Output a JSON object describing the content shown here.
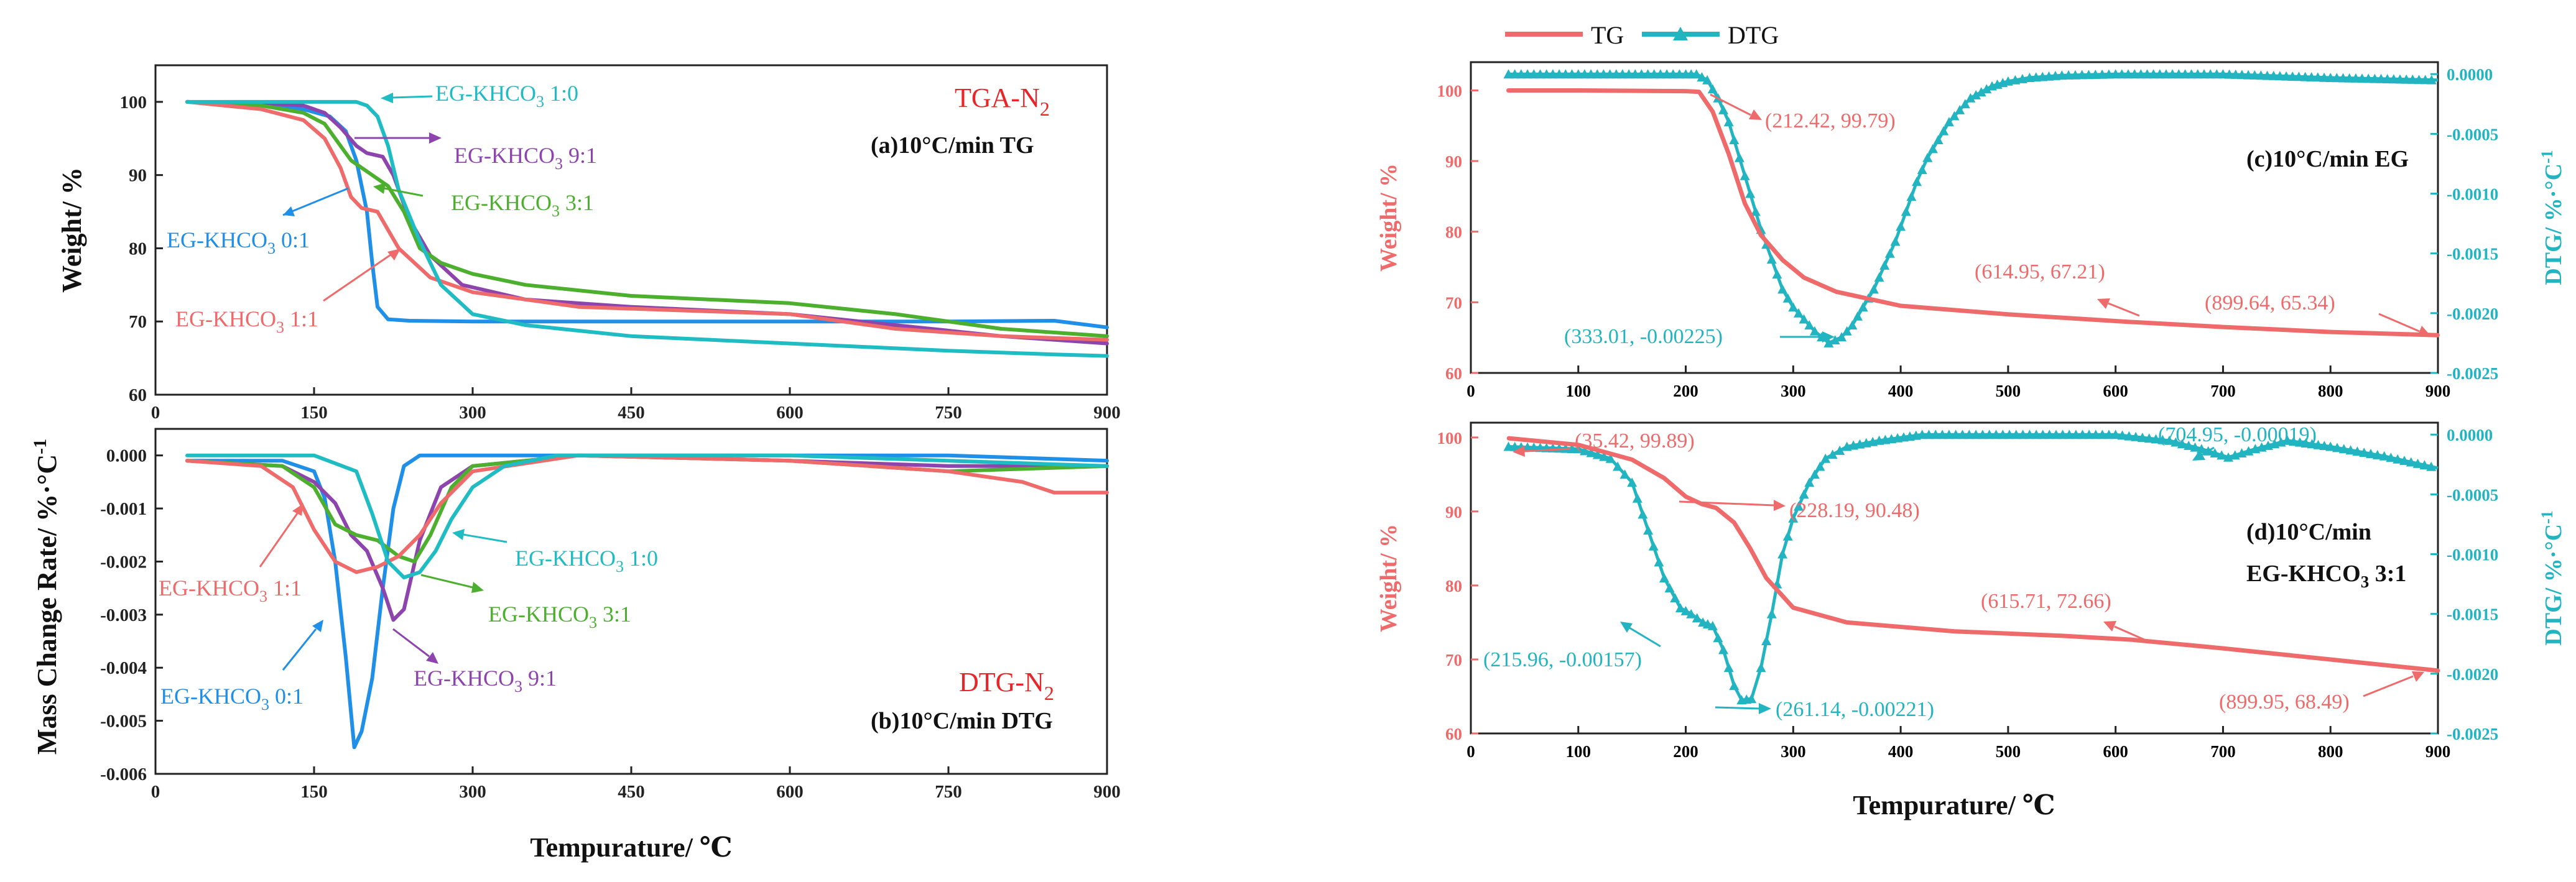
{
  "colors": {
    "c10": "#1f8fe8",
    "c91": "#8e44ad",
    "c31": "#4caf2e",
    "c11": "#ef6a6a",
    "c01": "#1fbcc3",
    "red": "#e8262a",
    "tg": "#ef6a6a",
    "dtg": "#22b5c1"
  },
  "chart_data": [
    {
      "id": "a",
      "type": "line",
      "title": "(a)10°C/min TG",
      "corner_label": "TGA-N2",
      "xlabel": "",
      "ylabel": "Weight/ %",
      "xlim": [
        0,
        900
      ],
      "ylim": [
        60,
        105
      ],
      "xticks": [
        0,
        150,
        300,
        450,
        600,
        750,
        900
      ],
      "yticks": [
        60,
        70,
        80,
        90,
        100
      ],
      "series": [
        {
          "name": "EG-KHCO3 0:1",
          "color_key": "c10",
          "x": [
            30,
            100,
            140,
            165,
            180,
            190,
            200,
            205,
            210,
            220,
            240,
            300,
            450,
            600,
            750,
            850,
            900
          ],
          "y": [
            100,
            99.5,
            99,
            98,
            96,
            92,
            85,
            78,
            72,
            70.3,
            70.1,
            70,
            70,
            70,
            70,
            70.1,
            69.2
          ]
        },
        {
          "name": "EG-KHCO3 9:1",
          "color_key": "c91",
          "x": [
            30,
            100,
            140,
            160,
            175,
            190,
            200,
            215,
            225,
            240,
            260,
            290,
            350,
            450,
            600,
            700,
            800,
            900
          ],
          "y": [
            100,
            99.8,
            99.5,
            98.5,
            96.5,
            94,
            93,
            92.5,
            90,
            84,
            79,
            75,
            73,
            72,
            71,
            69.5,
            68,
            67
          ]
        },
        {
          "name": "EG-KHCO3 3:1",
          "color_key": "c31",
          "x": [
            30,
            100,
            140,
            160,
            175,
            185,
            200,
            220,
            235,
            250,
            270,
            300,
            350,
            450,
            600,
            700,
            800,
            900
          ],
          "y": [
            100,
            99.5,
            98.5,
            97,
            94,
            92,
            90.5,
            88.5,
            85,
            80,
            78,
            76.5,
            75,
            73.5,
            72.5,
            71,
            69,
            68
          ]
        },
        {
          "name": "EG-KHCO3 1:1",
          "color_key": "c11",
          "x": [
            30,
            100,
            140,
            160,
            175,
            185,
            195,
            210,
            230,
            260,
            300,
            400,
            600,
            700,
            800,
            900
          ],
          "y": [
            100,
            99,
            97.5,
            95,
            91,
            87,
            85.5,
            85,
            80,
            76,
            74,
            72,
            71,
            69,
            68,
            67.5
          ]
        },
        {
          "name": "EG-KHCO3 1:0",
          "color_key": "c01",
          "x": [
            30,
            100,
            150,
            190,
            200,
            210,
            220,
            230,
            250,
            270,
            300,
            350,
            450,
            600,
            750,
            850,
            900
          ],
          "y": [
            100,
            100,
            100,
            100,
            99.5,
            98,
            94,
            88,
            81,
            75,
            71,
            69.5,
            68,
            67,
            66,
            65.5,
            65.3
          ]
        }
      ],
      "annotations": [
        "EG-KHCO3 1:0",
        "EG-KHCO3 9:1",
        "EG-KHCO3 3:1",
        "EG-KHCO3 0:1",
        "EG-KHCO3 1:1"
      ]
    },
    {
      "id": "b",
      "type": "line",
      "title": "(b)10°C/min DTG",
      "corner_label": "DTG-N2",
      "xlabel": "Tempurature/ ℃",
      "ylabel": "Mass Change Rate/ %·°C-1",
      "xlim": [
        0,
        900
      ],
      "ylim": [
        -0.006,
        0.0005
      ],
      "xticks": [
        0,
        150,
        300,
        450,
        600,
        750,
        900
      ],
      "yticks": [
        0.0,
        -0.001,
        -0.002,
        -0.003,
        -0.004,
        -0.005,
        -0.006
      ],
      "series": [
        {
          "name": "EG-KHCO3 0:1",
          "color_key": "c10",
          "x": [
            30,
            120,
            150,
            160,
            170,
            180,
            188,
            195,
            205,
            215,
            225,
            235,
            250,
            300,
            450,
            600,
            750,
            900
          ],
          "y": [
            -0.0001,
            -0.0001,
            -0.0003,
            -0.0008,
            -0.002,
            -0.0038,
            -0.0055,
            -0.0052,
            -0.0042,
            -0.0025,
            -0.001,
            -0.0002,
            0,
            0,
            0,
            0,
            0,
            -0.0001
          ]
        },
        {
          "name": "EG-KHCO3 9:1",
          "color_key": "c91",
          "x": [
            30,
            120,
            150,
            170,
            185,
            200,
            215,
            225,
            235,
            250,
            270,
            300,
            400,
            600,
            750,
            900
          ],
          "y": [
            -0.0001,
            -0.0002,
            -0.0005,
            -0.0009,
            -0.0015,
            -0.0018,
            -0.0025,
            -0.0031,
            -0.0029,
            -0.0016,
            -0.0006,
            -0.0002,
            0,
            -0.0001,
            -0.0002,
            -0.0002
          ]
        },
        {
          "name": "EG-KHCO3 3:1",
          "color_key": "c31",
          "x": [
            30,
            120,
            150,
            170,
            190,
            210,
            230,
            245,
            260,
            280,
            300,
            400,
            600,
            750,
            900
          ],
          "y": [
            -0.0001,
            -0.0002,
            -0.0006,
            -0.0013,
            -0.0015,
            -0.0016,
            -0.0019,
            -0.002,
            -0.0015,
            -0.0006,
            -0.0002,
            0,
            -0.0001,
            -0.0003,
            -0.0002
          ]
        },
        {
          "name": "EG-KHCO3 1:1",
          "color_key": "c11",
          "x": [
            30,
            100,
            130,
            150,
            170,
            190,
            210,
            230,
            250,
            270,
            300,
            400,
            600,
            750,
            820,
            850,
            900
          ],
          "y": [
            -0.0001,
            -0.0002,
            -0.0006,
            -0.0014,
            -0.002,
            -0.0022,
            -0.0021,
            -0.0019,
            -0.0015,
            -0.0009,
            -0.0003,
            0,
            -0.0001,
            -0.0003,
            -0.0005,
            -0.0007,
            -0.0007
          ]
        },
        {
          "name": "EG-KHCO3 1:0",
          "color_key": "c01",
          "x": [
            30,
            150,
            190,
            205,
            220,
            235,
            250,
            265,
            280,
            300,
            330,
            380,
            450,
            600,
            750,
            900
          ],
          "y": [
            0,
            0,
            -0.0003,
            -0.0011,
            -0.002,
            -0.0023,
            -0.0022,
            -0.0018,
            -0.0012,
            -0.0006,
            -0.0002,
            0,
            0,
            0,
            -0.0001,
            -0.0002
          ]
        }
      ],
      "annotations": [
        "EG-KHCO3 1:1",
        "EG-KHCO3 1:0",
        "EG-KHCO3 3:1",
        "EG-KHCO3 0:1",
        "EG-KHCO3 9:1"
      ]
    },
    {
      "id": "c",
      "type": "line",
      "title": "(c)10°C/min EG",
      "xlabel": "",
      "ylabel": "Weight/ %",
      "y2label": "DTG/ %·°C-1",
      "xlim": [
        0,
        900
      ],
      "ylim": [
        60,
        104
      ],
      "y2lim": [
        -0.0025,
        0.0001
      ],
      "xticks": [
        0,
        100,
        200,
        300,
        400,
        500,
        600,
        700,
        800,
        900
      ],
      "yticks": [
        60,
        70,
        80,
        90,
        100
      ],
      "y2ticks": [
        0.0,
        -0.0005,
        -0.001,
        -0.0015,
        -0.002,
        -0.0025
      ],
      "series": [
        {
          "name": "TG",
          "axis": "y",
          "x": [
            35,
            100,
            200,
            212.42,
            225,
            240,
            255,
            270,
            290,
            310,
            340,
            400,
            500,
            614.95,
            700,
            800,
            899.64
          ],
          "y": [
            100,
            100,
            99.9,
            99.79,
            97,
            91,
            84,
            79.5,
            76,
            73.5,
            71.5,
            69.5,
            68.3,
            67.21,
            66.5,
            65.8,
            65.34
          ]
        },
        {
          "name": "DTG",
          "axis": "y2",
          "x": [
            35,
            100,
            200,
            210,
            220,
            230,
            240,
            250,
            260,
            270,
            280,
            290,
            300,
            310,
            320,
            333.01,
            345,
            355,
            365,
            375,
            385,
            395,
            405,
            415,
            425,
            435,
            445,
            455,
            465,
            475,
            485,
            500,
            520,
            550,
            600,
            700,
            800,
            900
          ],
          "y": [
            0,
            0,
            0,
            0,
            -5e-05,
            -0.0002,
            -0.0004,
            -0.0007,
            -0.001,
            -0.0013,
            -0.00155,
            -0.0018,
            -0.00195,
            -0.00205,
            -0.00215,
            -0.00225,
            -0.0022,
            -0.0021,
            -0.00195,
            -0.0018,
            -0.0016,
            -0.0014,
            -0.00115,
            -0.0009,
            -0.0007,
            -0.00055,
            -0.0004,
            -0.0003,
            -0.0002,
            -0.00015,
            -0.0001,
            -6e-05,
            -3e-05,
            -1e-05,
            0,
            0,
            -3e-05,
            -5e-05
          ]
        }
      ],
      "annotations": [
        "(212.42, 99.79)",
        "(333.01, -0.00225)",
        "(614.95, 67.21)",
        "(899.64, 65.34)"
      ]
    },
    {
      "id": "d",
      "type": "line",
      "title": "(d)10°C/min",
      "subtitle": "EG-KHCO3 3:1",
      "xlabel": "Tempurature/ ℃",
      "ylabel": "Weight/ %",
      "y2label": "DTG/ %·°C-1",
      "xlim": [
        0,
        900
      ],
      "ylim": [
        60,
        102
      ],
      "y2lim": [
        -0.0025,
        0.0001
      ],
      "xticks": [
        0,
        100,
        200,
        300,
        400,
        500,
        600,
        700,
        800,
        900
      ],
      "yticks": [
        60,
        70,
        80,
        90,
        100
      ],
      "y2ticks": [
        0.0,
        -0.0005,
        -0.001,
        -0.0015,
        -0.002,
        -0.0025
      ],
      "series": [
        {
          "name": "TG",
          "axis": "y",
          "x": [
            35.42,
            100,
            150,
            180,
            200,
            215,
            228.19,
            245,
            260,
            275,
            300,
            350,
            450,
            550,
            615.71,
            700,
            800,
            899.95
          ],
          "y": [
            99.89,
            99,
            97,
            94.5,
            92,
            91,
            90.48,
            88.5,
            85,
            81,
            77,
            75,
            73.8,
            73.2,
            72.66,
            71.5,
            70,
            68.49
          ]
        },
        {
          "name": "DTG",
          "axis": "y2",
          "x": [
            35,
            100,
            130,
            150,
            165,
            180,
            195,
            205,
            215.96,
            225,
            235,
            245,
            252,
            261.14,
            270,
            280,
            290,
            300,
            315,
            330,
            350,
            380,
            420,
            470,
            520,
            600,
            650,
            680,
            704.95,
            730,
            760,
            800,
            850,
            900
          ],
          "y": [
            -0.0001,
            -0.00012,
            -0.0002,
            -0.0004,
            -0.0008,
            -0.0012,
            -0.00145,
            -0.0015,
            -0.00157,
            -0.0016,
            -0.0018,
            -0.0021,
            -0.00222,
            -0.00221,
            -0.00195,
            -0.0015,
            -0.001,
            -0.0007,
            -0.0004,
            -0.0002,
            -0.0001,
            -5e-05,
            0,
            0,
            0,
            0,
            -5e-05,
            -0.00012,
            -0.00019,
            -0.00012,
            -5e-05,
            -0.0001,
            -0.00018,
            -0.00028
          ]
        }
      ],
      "annotations": [
        "(35.42, 99.89)",
        "(228.19, 90.48)",
        "(215.96, -0.00157)",
        "(261.14, -0.00221)",
        "(704.95, -0.00019)",
        "(615.71, 72.66)",
        "(899.95, 68.49)"
      ]
    }
  ],
  "text": {
    "a_title": "(a)10°C/min TG",
    "a_corner": "TGA-N",
    "a_corner_sub": "2",
    "a_ylabel": "Weight/ %",
    "b_title": "(b)10°C/min DTG",
    "b_corner": "DTG-N",
    "b_corner_sub": "2",
    "b_ylabel": "Mass Change Rate/ %·°C",
    "b_ylabel_sup": "-1",
    "ab_xlabel": "Tempurature/ ℃",
    "lab_base": "EG-KHCO",
    "lab_sub": "3",
    "r10": " 1:0",
    "r91": " 9:1",
    "r31": " 3:1",
    "r01": " 0:1",
    "r11": " 1:1",
    "legend_tg": "TG",
    "legend_dtg": "DTG",
    "c_title": "(c)10°C/min EG",
    "c_ylabel": "Weight/ %",
    "c_y2label": "DTG/ %·°C",
    "c_y2label_sup": "-1",
    "c_ann1": "(212.42, 99.79)",
    "c_ann2": "(333.01, -0.00225)",
    "c_ann3": "(614.95, 67.21)",
    "c_ann4": "(899.64, 65.34)",
    "d_title": "(d)10°C/min",
    "d_sub_base": "EG-KHCO",
    "d_sub_sub": "3",
    "d_sub_ratio": " 3:1",
    "d_ylabel": "Weight/ %",
    "d_y2label": "DTG/ %·°C",
    "d_y2label_sup": "-1",
    "d_ann1": "(35.42, 99.89)",
    "d_ann2": "(228.19, 90.48)",
    "d_ann3": "(215.96, -0.00157)",
    "d_ann4": "(261.14, -0.00221)",
    "d_ann5": "(704.95, -0.00019)",
    "d_ann6": "(615.71, 72.66)",
    "d_ann7": "(899.95, 68.49)",
    "cd_xlabel": "Tempurature/ ℃"
  }
}
